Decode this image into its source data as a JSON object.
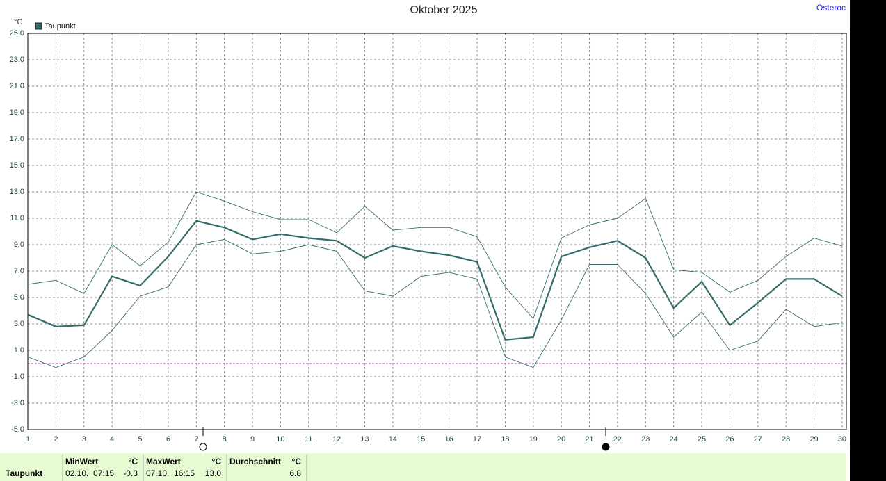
{
  "chart_data": {
    "type": "line",
    "title": "Oktober 2025",
    "station": "Osteroc",
    "y_unit": "°C",
    "x": [
      1,
      2,
      3,
      4,
      5,
      6,
      7,
      8,
      9,
      10,
      11,
      12,
      13,
      14,
      15,
      16,
      17,
      18,
      19,
      20,
      21,
      22,
      23,
      24,
      25,
      26,
      27,
      28,
      29,
      30
    ],
    "xlim": [
      1,
      30.15
    ],
    "xticks": [
      1,
      2,
      3,
      4,
      5,
      6,
      7,
      8,
      9,
      10,
      11,
      12,
      13,
      14,
      15,
      16,
      17,
      18,
      19,
      20,
      21,
      22,
      23,
      24,
      25,
      26,
      27,
      28,
      29,
      30
    ],
    "ylim": [
      -5,
      25
    ],
    "yticks": [
      {
        "value": 25,
        "label": "25.0"
      },
      {
        "value": 23,
        "label": "23.0"
      },
      {
        "value": 21,
        "label": "21.0"
      },
      {
        "value": 19,
        "label": "19.0"
      },
      {
        "value": 17,
        "label": "17.0"
      },
      {
        "value": 15,
        "label": "15.0"
      },
      {
        "value": 13,
        "label": "13.0"
      },
      {
        "value": 11,
        "label": "11.0"
      },
      {
        "value": 9,
        "label": "9.0"
      },
      {
        "value": 7,
        "label": "7.0"
      },
      {
        "value": 5,
        "label": "5.0"
      },
      {
        "value": 3,
        "label": "3.0"
      },
      {
        "value": 1,
        "label": "1.0"
      },
      {
        "value": -1,
        "label": "-1.0"
      },
      {
        "value": -3,
        "label": "-3.0"
      },
      {
        "value": -5,
        "label": "-5.0"
      }
    ],
    "grid": true,
    "zero_line_color": "#c040c0",
    "legend": "top-left",
    "series": [
      {
        "name": "Taupunkt",
        "color": "#356b6b",
        "width": 2.2,
        "values": [
          3.7,
          2.8,
          2.9,
          6.6,
          5.9,
          8.1,
          10.8,
          10.3,
          9.4,
          9.8,
          9.5,
          9.3,
          8.0,
          8.9,
          8.5,
          8.2,
          7.7,
          1.8,
          2.0,
          8.1,
          8.8,
          9.3,
          8.0,
          4.2,
          6.2,
          2.9,
          4.6,
          6.4,
          6.4,
          5.1
        ]
      },
      {
        "color": "#356b6b",
        "width": 0.9,
        "values": [
          6.0,
          6.3,
          5.3,
          9.0,
          7.4,
          9.2,
          13.0,
          12.3,
          11.5,
          10.9,
          10.9,
          9.9,
          11.9,
          10.1,
          10.3,
          10.3,
          9.6,
          5.8,
          3.4,
          9.5,
          10.5,
          11.0,
          12.5,
          7.1,
          6.9,
          5.4,
          6.3,
          8.1,
          9.5,
          8.9
        ]
      },
      {
        "color": "#356b6b",
        "width": 0.9,
        "values": [
          0.5,
          -0.3,
          0.5,
          2.5,
          5.1,
          5.8,
          9.0,
          9.4,
          8.3,
          8.5,
          9.0,
          8.5,
          5.5,
          5.1,
          6.6,
          6.9,
          6.4,
          0.5,
          -0.3,
          3.3,
          7.5,
          7.5,
          5.3,
          2.0,
          3.9,
          1.0,
          1.7,
          4.1,
          2.8,
          3.1
        ]
      }
    ]
  },
  "summary_table": {
    "row_label": "Taupunkt",
    "columns": [
      {
        "header": "MinWert",
        "unit": "°C",
        "time": "02.10.  07:15",
        "value": "-0.3"
      },
      {
        "header": "MaxWert",
        "unit": "°C",
        "time": "07.10.  16:15",
        "value": "13.0"
      },
      {
        "header": "Durchschnitt",
        "unit": "°C",
        "value": "6.8"
      }
    ]
  }
}
